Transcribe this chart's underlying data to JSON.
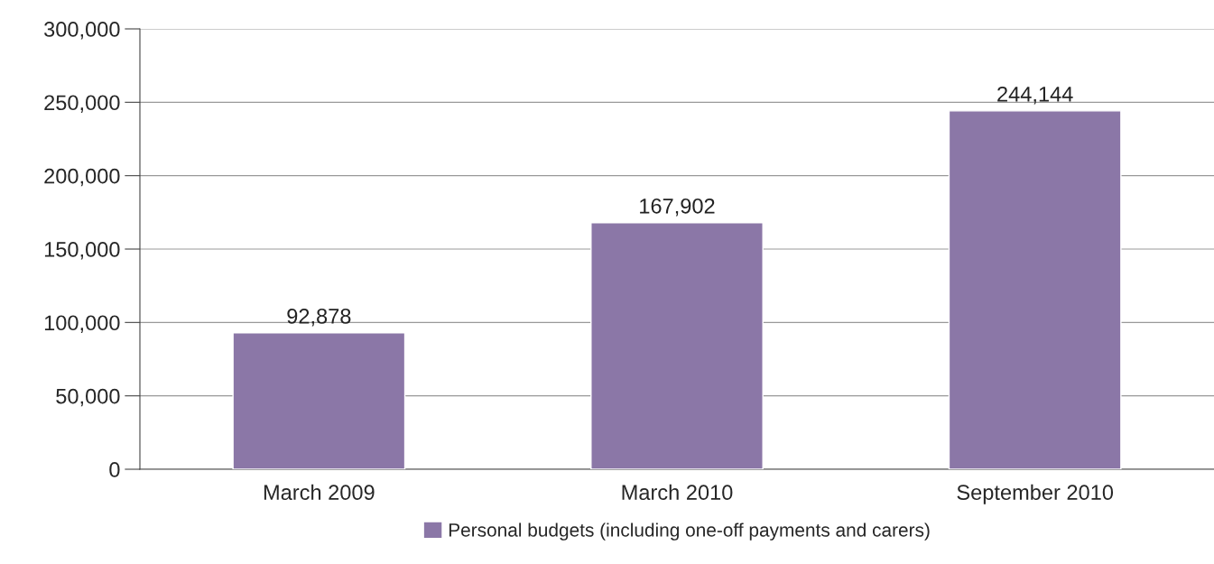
{
  "chart_data": {
    "type": "bar",
    "categories": [
      "March 2009",
      "March 2010",
      "September 2010"
    ],
    "series": [
      {
        "name": "Personal budgets (including one-off payments and carers)",
        "color": "#8b77a7",
        "values": [
          92878,
          167902,
          244144
        ],
        "value_labels": [
          "92,878",
          "167,902",
          "244,144"
        ]
      }
    ],
    "ylim": [
      0,
      300000
    ],
    "yticks": [
      {
        "value": 0,
        "label": "0"
      },
      {
        "value": 50000,
        "label": "50,000"
      },
      {
        "value": 100000,
        "label": "100,000"
      },
      {
        "value": 150000,
        "label": "150,000"
      },
      {
        "value": 200000,
        "label": "200,000"
      },
      {
        "value": 250000,
        "label": "250,000"
      },
      {
        "value": 300000,
        "label": "300,000"
      }
    ],
    "grid": "y",
    "legend": "bottom"
  }
}
